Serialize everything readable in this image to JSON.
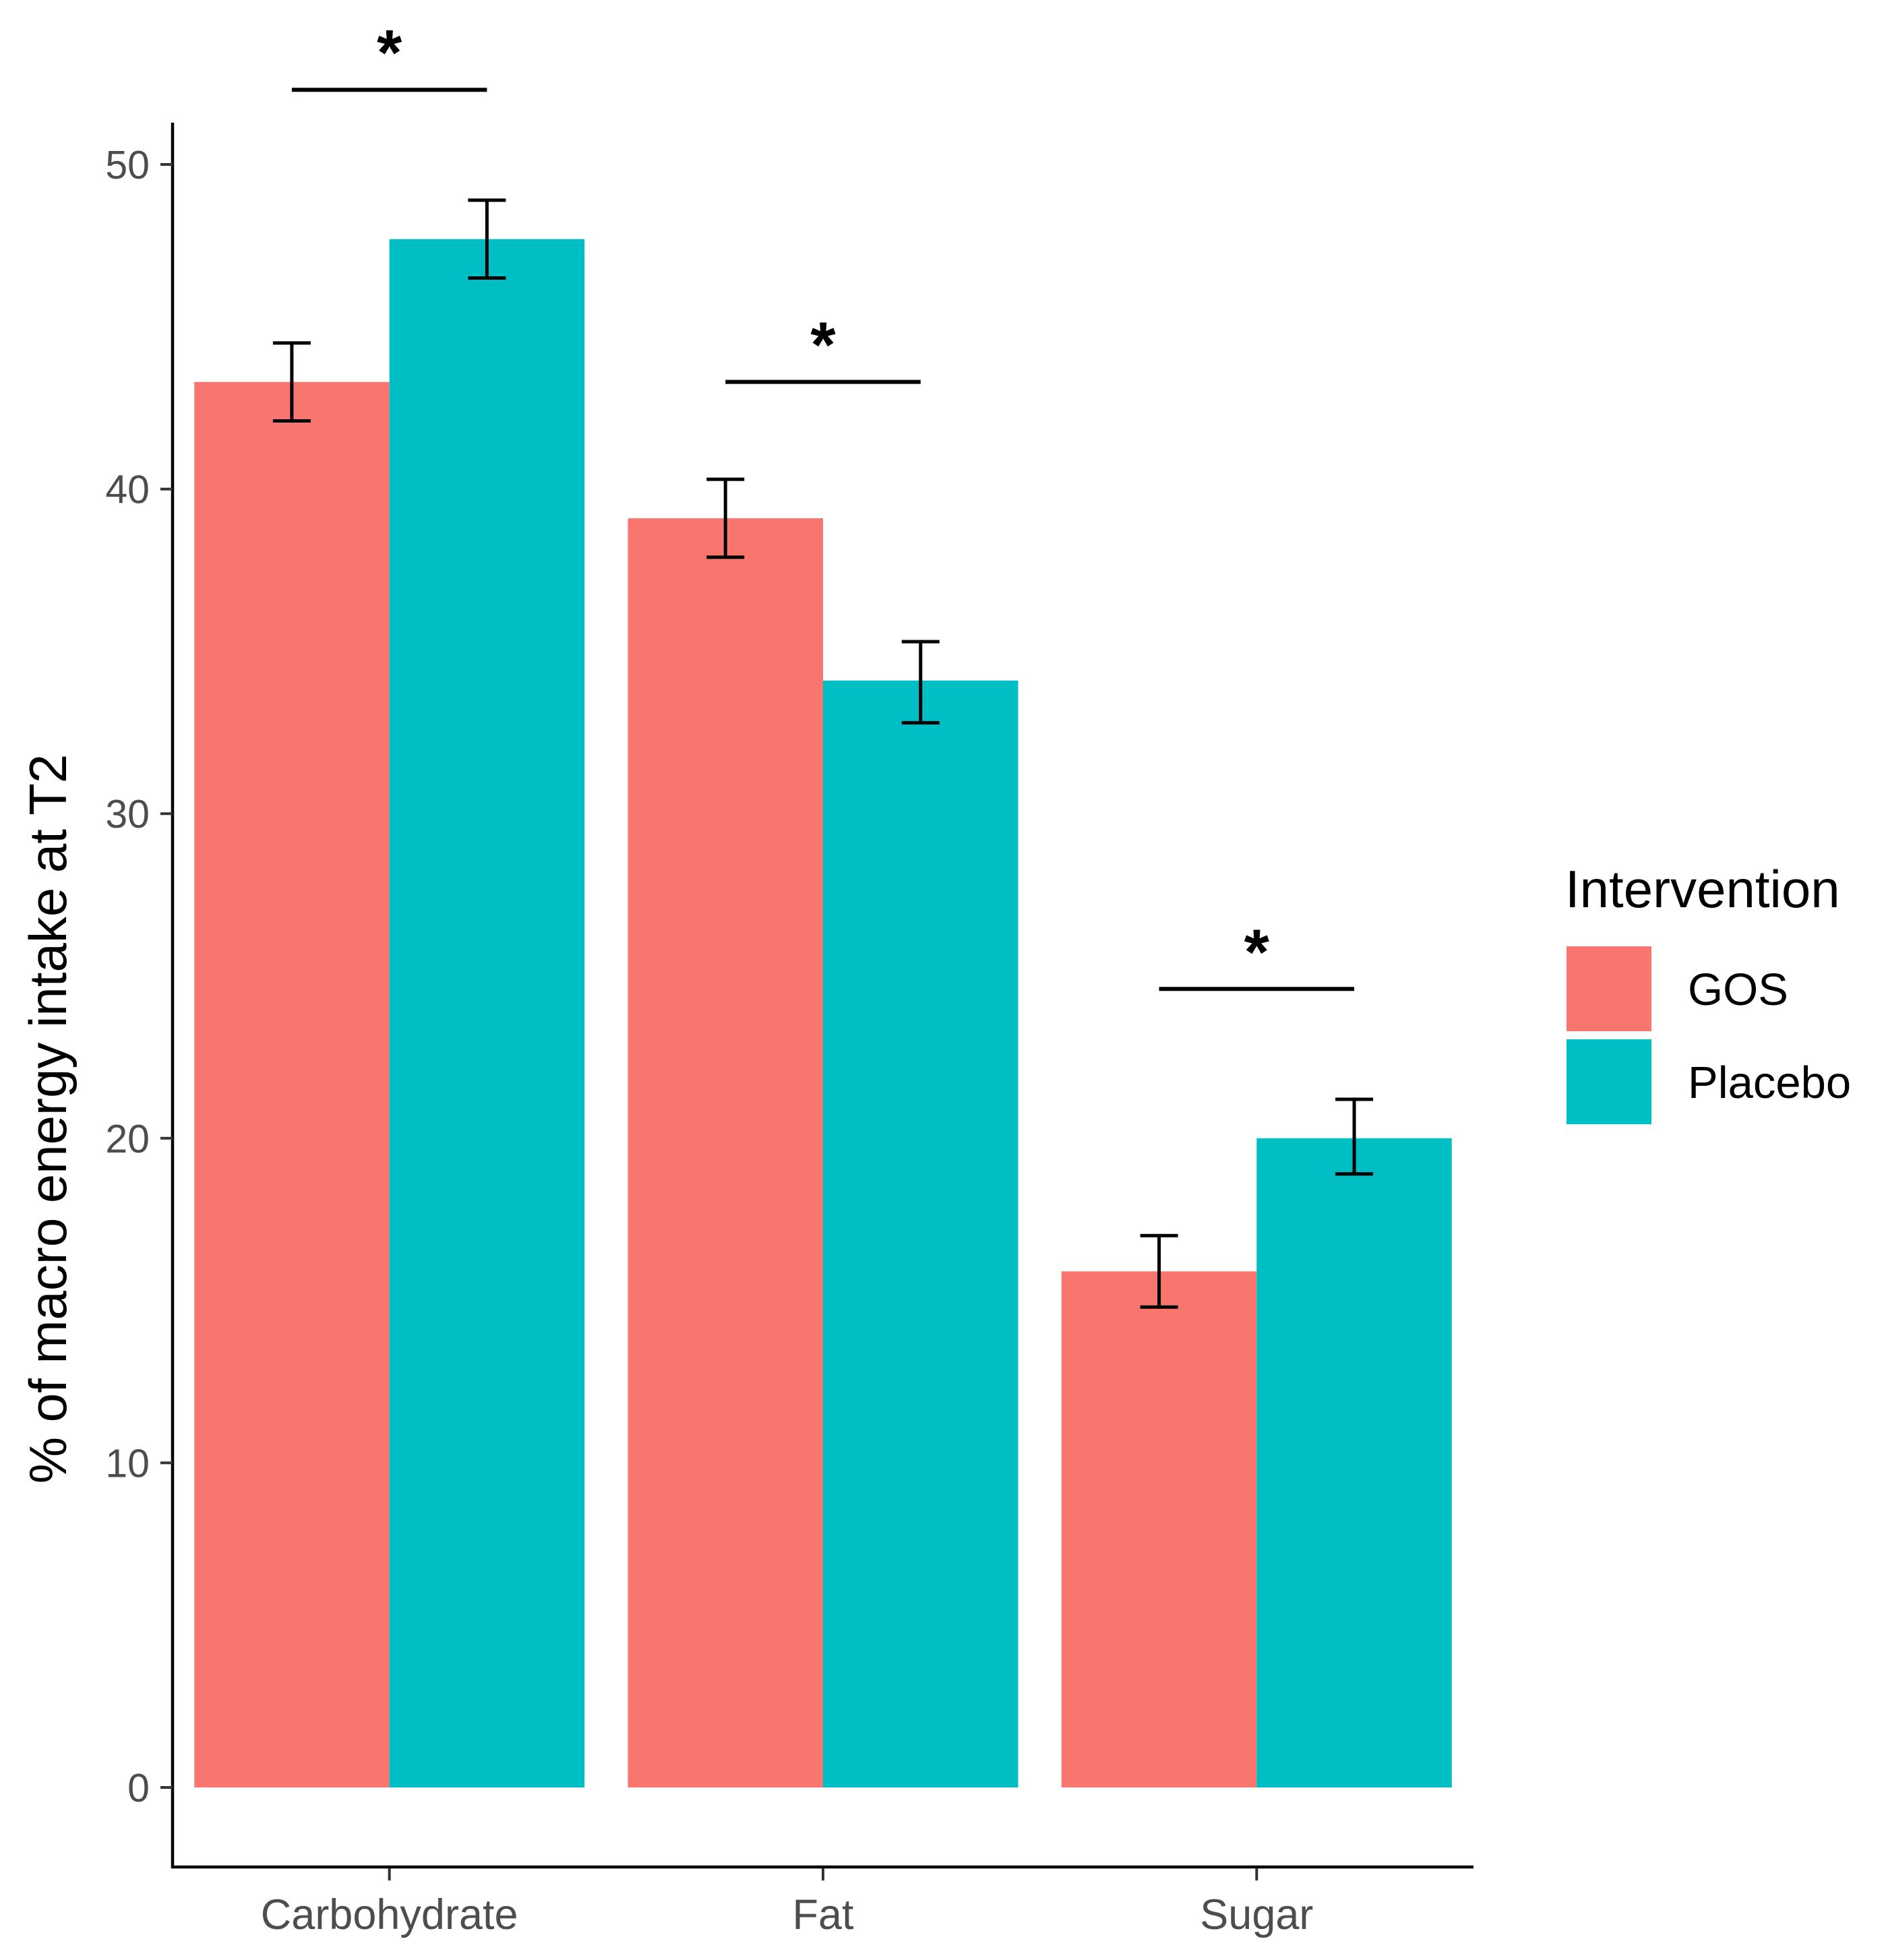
{
  "chart_data": {
    "type": "bar",
    "ylabel": "% of macro energy intake at T2",
    "xlabel": "",
    "categories": [
      "Carbohydrate",
      "Fat",
      "Sugar"
    ],
    "ylim": [
      0,
      50
    ],
    "yticks": [
      0,
      10,
      20,
      30,
      40,
      50
    ],
    "grid": false,
    "legend": {
      "title": "Intervention",
      "position": "right"
    },
    "series": [
      {
        "name": "GOS",
        "color": "#F8766D",
        "values": [
          43.3,
          39.1,
          15.9
        ],
        "error_lower": [
          42.1,
          37.9,
          14.8
        ],
        "error_upper": [
          44.5,
          40.3,
          17.0
        ]
      },
      {
        "name": "Placebo",
        "color": "#00BFC4",
        "values": [
          47.7,
          34.1,
          20.0
        ],
        "error_lower": [
          46.5,
          32.8,
          18.9
        ],
        "error_upper": [
          48.9,
          35.3,
          21.2
        ]
      }
    ],
    "significance": [
      {
        "category": "Carbohydrate",
        "label": "*",
        "y": 52.3
      },
      {
        "category": "Fat",
        "label": "*",
        "y": 43.3
      },
      {
        "category": "Sugar",
        "label": "*",
        "y": 24.6
      }
    ]
  }
}
